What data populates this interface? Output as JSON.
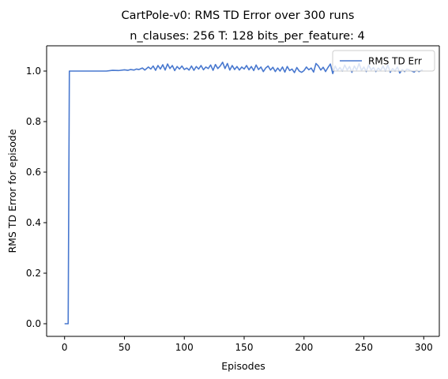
{
  "chart_data": {
    "type": "line",
    "suptitle": "CartPole-v0: RMS TD Error over 300 runs",
    "title": "n_clauses: 256 T: 128 bits_per_feature: 4",
    "xlabel": "Episodes",
    "ylabel": "RMS TD Error for episode",
    "xlim": [
      -15,
      313
    ],
    "ylim": [
      -0.05,
      1.1
    ],
    "xticks": [
      0,
      50,
      100,
      150,
      200,
      250,
      300
    ],
    "xtick_labels": [
      "0",
      "50",
      "100",
      "150",
      "200",
      "250",
      "300"
    ],
    "yticks": [
      0.0,
      0.2,
      0.4,
      0.6,
      0.8,
      1.0
    ],
    "ytick_labels": [
      "0.0",
      "0.2",
      "0.4",
      "0.6",
      "0.8",
      "1.0"
    ],
    "grid": false,
    "legend_position": "top-right",
    "series": [
      {
        "name": "RMS TD Err",
        "color": "#4878cf",
        "points": [
          [
            0,
            0.0
          ],
          [
            3,
            0.0
          ],
          [
            4,
            1.0
          ],
          [
            10,
            1.0
          ],
          [
            20,
            1.0
          ],
          [
            30,
            1.0
          ],
          [
            35,
            1.0
          ],
          [
            40,
            1.003
          ],
          [
            45,
            1.002
          ],
          [
            50,
            1.005
          ],
          [
            53,
            1.003
          ],
          [
            55,
            1.006
          ],
          [
            58,
            1.004
          ],
          [
            60,
            1.008
          ],
          [
            62,
            1.006
          ],
          [
            65,
            1.012
          ],
          [
            67,
            1.004
          ],
          [
            70,
            1.016
          ],
          [
            72,
            1.008
          ],
          [
            74,
            1.02
          ],
          [
            76,
            1.003
          ],
          [
            78,
            1.022
          ],
          [
            80,
            1.008
          ],
          [
            82,
            1.025
          ],
          [
            84,
            1.004
          ],
          [
            86,
            1.028
          ],
          [
            88,
            1.01
          ],
          [
            90,
            1.022
          ],
          [
            92,
            1.002
          ],
          [
            94,
            1.018
          ],
          [
            96,
            1.008
          ],
          [
            98,
            1.02
          ],
          [
            100,
            1.006
          ],
          [
            102,
            1.012
          ],
          [
            104,
            1.004
          ],
          [
            106,
            1.02
          ],
          [
            108,
            1.003
          ],
          [
            110,
            1.018
          ],
          [
            112,
            1.008
          ],
          [
            114,
            1.022
          ],
          [
            116,
            1.005
          ],
          [
            118,
            1.016
          ],
          [
            120,
            1.01
          ],
          [
            122,
            1.024
          ],
          [
            124,
            1.003
          ],
          [
            126,
            1.026
          ],
          [
            128,
            1.01
          ],
          [
            130,
            1.02
          ],
          [
            132,
            1.035
          ],
          [
            134,
            1.01
          ],
          [
            136,
            1.03
          ],
          [
            138,
            1.004
          ],
          [
            140,
            1.022
          ],
          [
            142,
            1.006
          ],
          [
            144,
            1.018
          ],
          [
            146,
            1.004
          ],
          [
            148,
            1.016
          ],
          [
            150,
            1.008
          ],
          [
            152,
            1.022
          ],
          [
            154,
            1.005
          ],
          [
            156,
            1.018
          ],
          [
            158,
            1.002
          ],
          [
            160,
            1.024
          ],
          [
            162,
            1.006
          ],
          [
            164,
            1.016
          ],
          [
            166,
            0.998
          ],
          [
            168,
            1.012
          ],
          [
            170,
            1.02
          ],
          [
            172,
            1.004
          ],
          [
            174,
            1.015
          ],
          [
            176,
            0.998
          ],
          [
            178,
            1.012
          ],
          [
            180,
            1.0
          ],
          [
            182,
            1.016
          ],
          [
            184,
            0.996
          ],
          [
            186,
            1.018
          ],
          [
            188,
            1.002
          ],
          [
            190,
            1.008
          ],
          [
            192,
            0.994
          ],
          [
            194,
            1.014
          ],
          [
            196,
            1.0
          ],
          [
            198,
            0.995
          ],
          [
            200,
            1.002
          ],
          [
            202,
            1.016
          ],
          [
            204,
            1.005
          ],
          [
            206,
            1.012
          ],
          [
            208,
            0.996
          ],
          [
            210,
            1.03
          ],
          [
            212,
            1.02
          ],
          [
            214,
            1.004
          ],
          [
            216,
            1.015
          ],
          [
            218,
            0.998
          ],
          [
            220,
            1.014
          ],
          [
            222,
            1.028
          ],
          [
            224,
            0.99
          ],
          [
            226,
            1.02
          ],
          [
            228,
            1.002
          ],
          [
            230,
            1.014
          ],
          [
            232,
            1.0
          ],
          [
            234,
            1.024
          ],
          [
            236,
            1.004
          ],
          [
            238,
            1.018
          ],
          [
            240,
            0.995
          ],
          [
            242,
            1.02
          ],
          [
            244,
            1.004
          ],
          [
            246,
            1.03
          ],
          [
            248,
            1.002
          ],
          [
            250,
            1.016
          ],
          [
            252,
            0.998
          ],
          [
            254,
            1.024
          ],
          [
            256,
            1.004
          ],
          [
            258,
            1.014
          ],
          [
            260,
            0.998
          ],
          [
            262,
            1.012
          ],
          [
            264,
            1.002
          ],
          [
            266,
            1.02
          ],
          [
            268,
            1.0
          ],
          [
            270,
            1.024
          ],
          [
            272,
            0.995
          ],
          [
            274,
            1.01
          ],
          [
            276,
            1.0
          ],
          [
            278,
            1.016
          ],
          [
            280,
            0.992
          ],
          [
            282,
            1.006
          ],
          [
            284,
            0.998
          ],
          [
            286,
            1.008
          ],
          [
            288,
            1.004
          ],
          [
            290,
            1.0
          ],
          [
            292,
            0.996
          ],
          [
            294,
            1.004
          ],
          [
            296,
            0.998
          ],
          [
            299,
            1.005
          ]
        ]
      }
    ]
  }
}
